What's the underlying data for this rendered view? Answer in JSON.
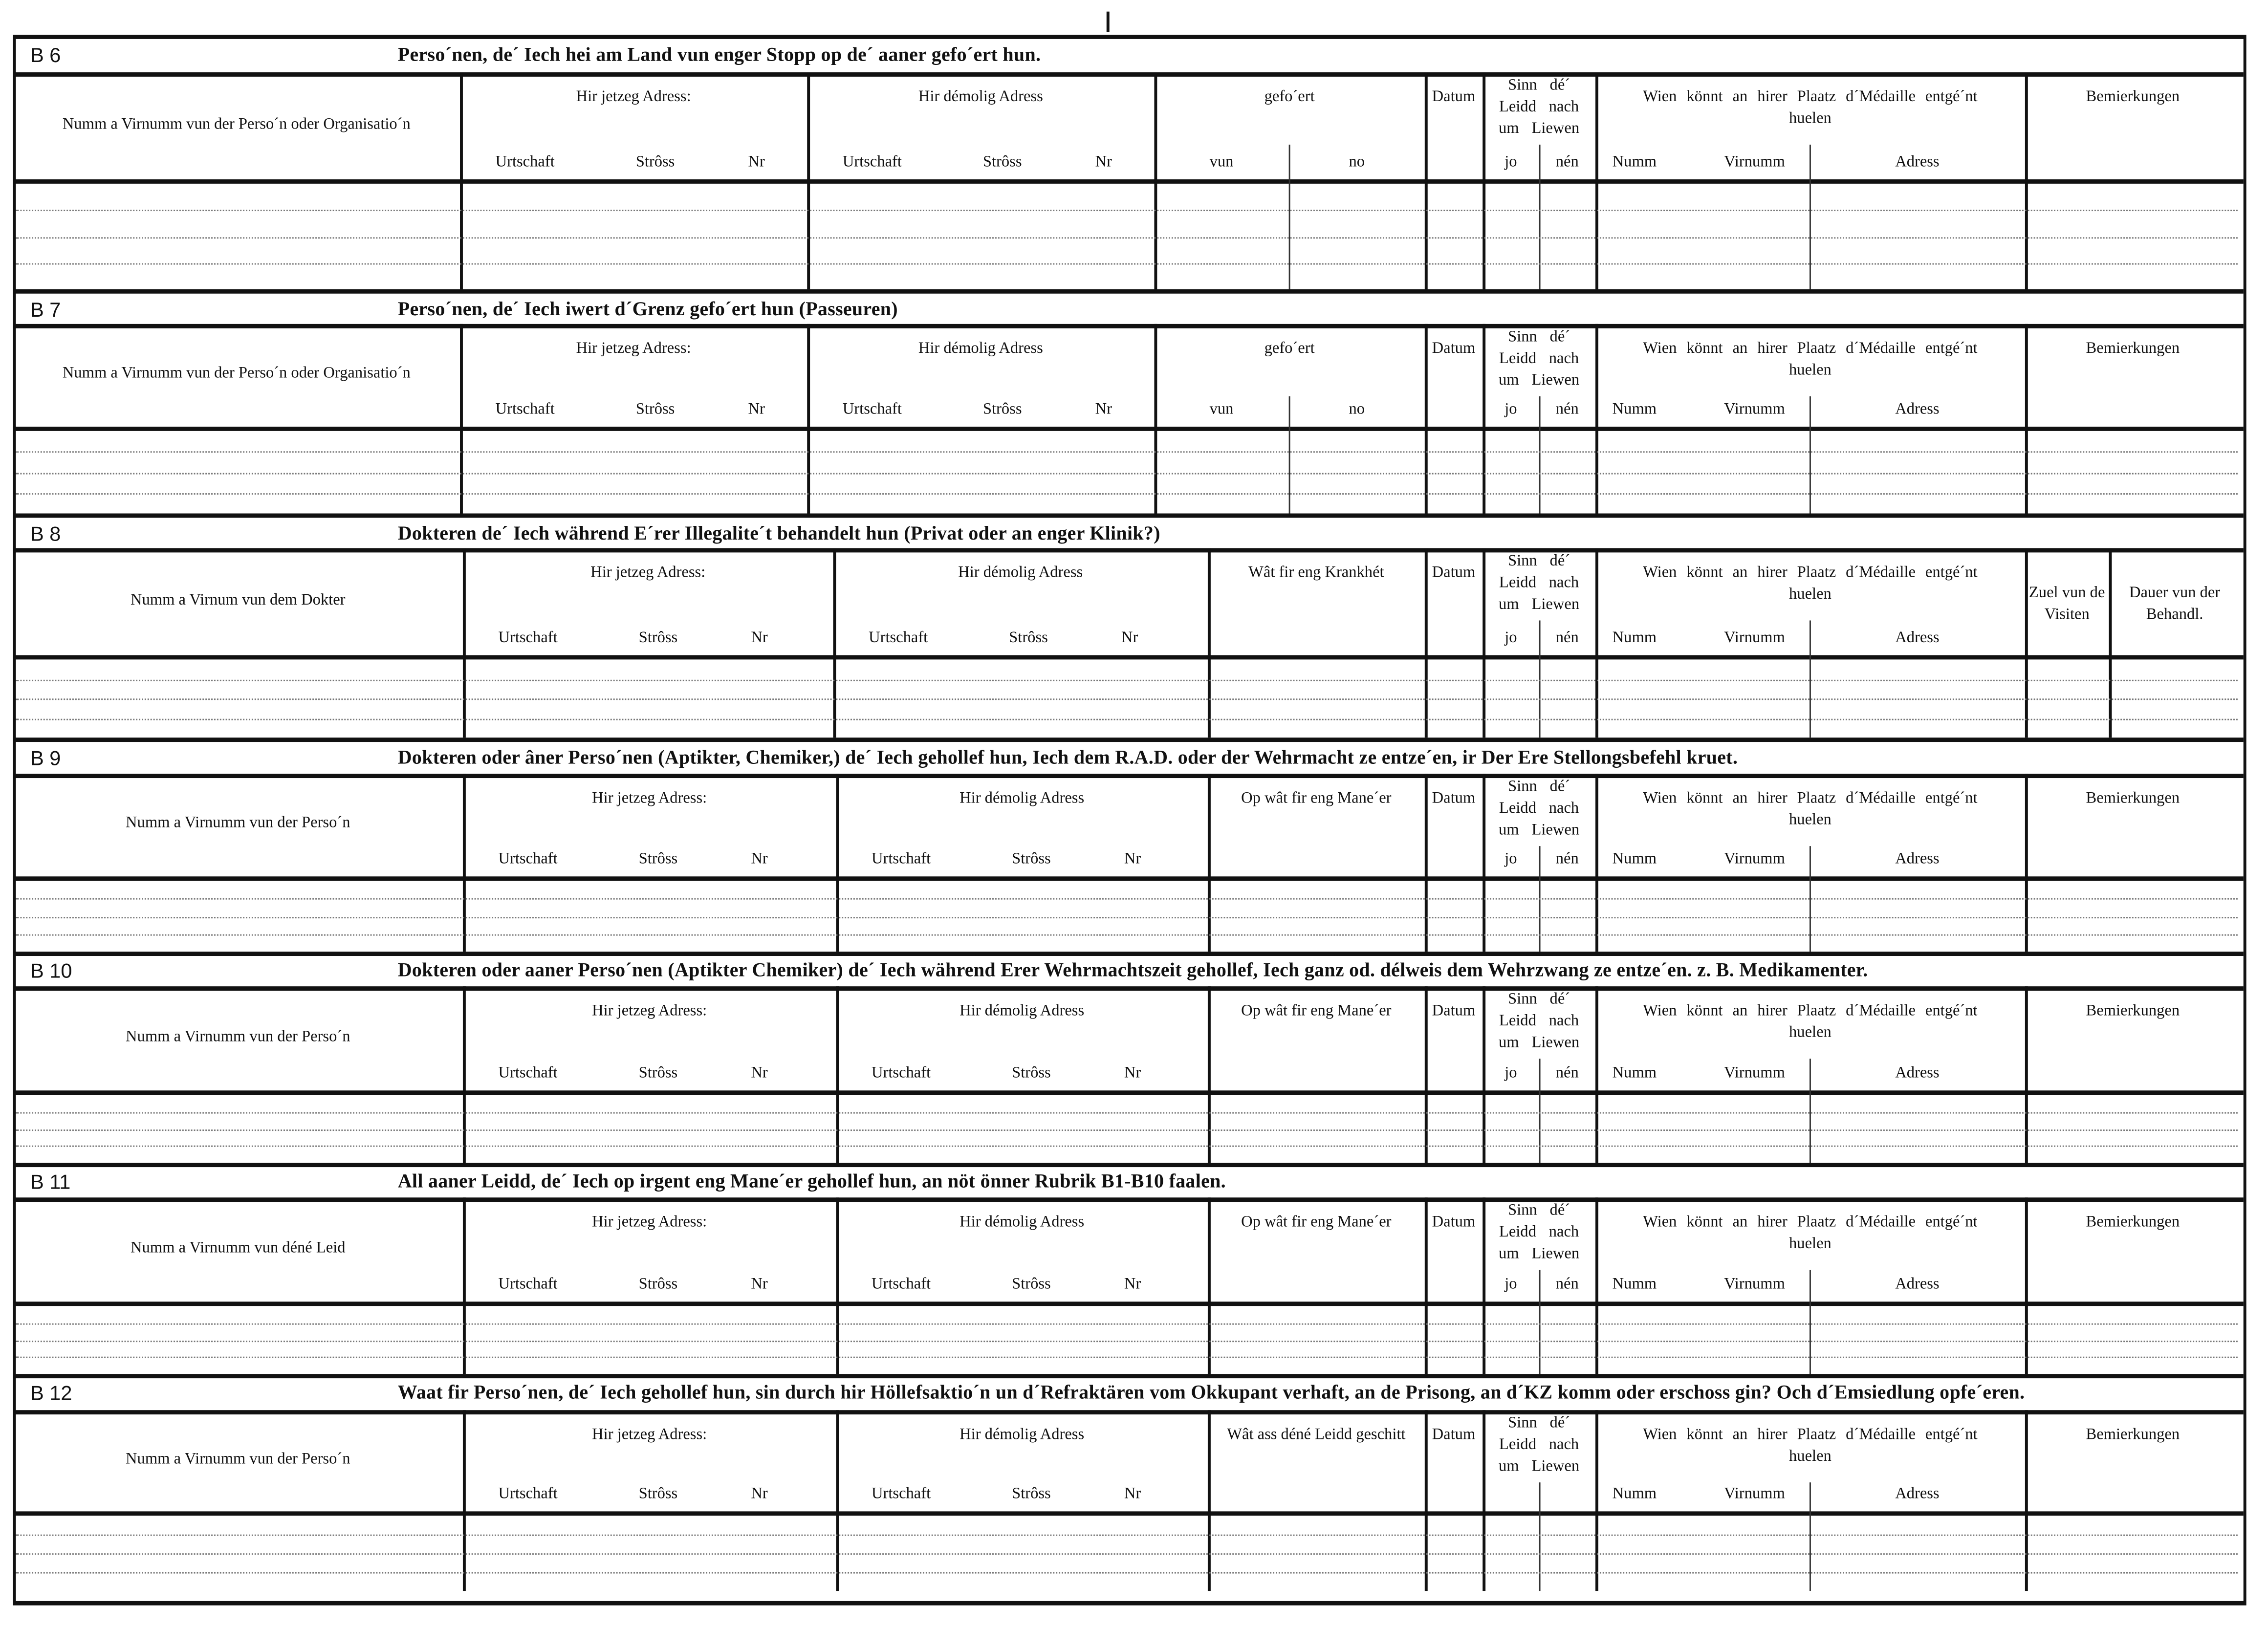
{
  "common": {
    "current_address": "Hir jetzeg Adress:",
    "former_address": "Hir démolig Adress",
    "address_sub": [
      "Urtschaft",
      "Strôss",
      "Nr"
    ],
    "date": "Datum",
    "alive": "Sinn dé´ Leidd nach um Liewen",
    "alive_sub": [
      "jo",
      "nén"
    ],
    "medal": "Wien könnt an hirer Plaatz d´Médaille entgé´nt huelen",
    "medal_sub": [
      "Numm",
      "Virnumm",
      "Adress"
    ],
    "remarks": "Bemierkungen"
  },
  "sections": [
    {
      "id": "B 6",
      "title": "Perso´nen, de´ Iech hei am Land vun enger Stopp  op de´ aaner gefo´ert hun.",
      "name_header": "Numm a Virnumm vun der Perso´n oder Organisatio´n",
      "col4": "gefo´ert",
      "col4_sub": [
        "vun",
        "no"
      ]
    },
    {
      "id": "B 7",
      "title": "Perso´nen, de´ Iech iwert d´Grenz gefo´ert hun (Passeuren)",
      "name_header": "Numm a Virnumm vun der Perso´n oder Organisatio´n",
      "col4": "gefo´ert",
      "col4_sub": [
        "vun",
        "no"
      ]
    },
    {
      "id": "B 8",
      "title": "Dokteren de´ Iech während E´rer Illegalite´t behandelt hun (Privat oder an enger Klinik?)",
      "name_header": "Numm a Virnum vun dem Dokter",
      "col4": "Wât fir eng Krankhét",
      "extra_cols": [
        "Zuel vun de Visiten",
        "Dauer vun der Behandl."
      ]
    },
    {
      "id": "B 9",
      "title": "Dokteren oder âner Perso´nen (Aptikter, Chemiker,) de´ Iech gehollef hun, Iech dem R.A.D. oder der Wehrmacht ze entze´en, ir Der Ere Stellongsbefehl kruet.",
      "name_header": "Numm a Virnumm vun der Perso´n",
      "col4": "Op wât fir eng Mane´er"
    },
    {
      "id": "B 10",
      "title": "Dokteren oder aaner Perso´nen (Aptikter Chemiker) de´ Iech während Erer Wehrmachtszeit gehollef, Iech ganz od. délweis dem Wehrzwang ze entze´en. z. B. Medikamenter.",
      "name_header": "Numm a Virnumm vun der Perso´n",
      "col4": "Op wât fir eng Mane´er"
    },
    {
      "id": "B 11",
      "title": "All aaner Leidd, de´ Iech op irgent eng Mane´er gehollef hun, an nöt önner Rubrik B1-B10 faalen.",
      "name_header": "Numm a Virnumm vun déné Leid",
      "col4": "Op wât fir eng Mane´er"
    },
    {
      "id": "B 12",
      "title": "Waat fir Perso´nen, de´ Iech gehollef hun, sin durch hir Höllefsaktio´n un d´Refraktären vom Okkupant verhaft, an de Prisong, an d´KZ komm oder erschoss gin? Och d´Emsiedlung opfe´eren.",
      "name_header": "Numm a Virnumm vun der Perso´n",
      "col4": "Wât ass déné Leidd geschitt",
      "no_alive_sub": true
    }
  ]
}
